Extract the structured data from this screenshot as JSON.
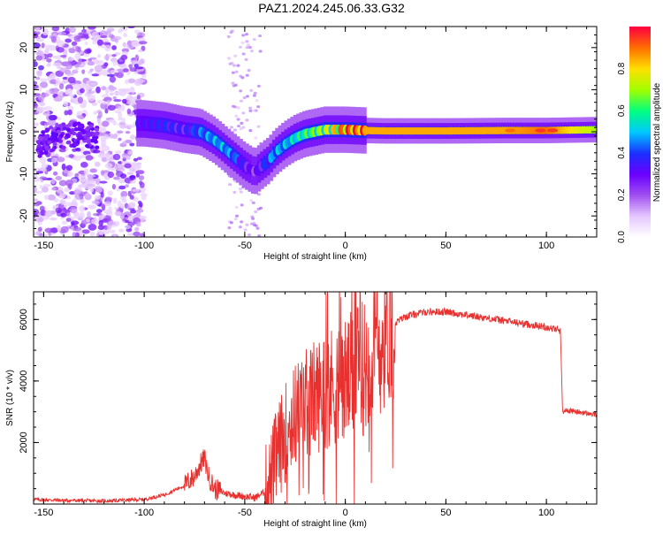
{
  "figure": {
    "title": "PAZ1.2024.245.06.33.G32"
  },
  "colors": {
    "snr_line": "#e8302e",
    "colormap": [
      "#ffffff",
      "#e6c8ff",
      "#a050f0",
      "#6a00ff",
      "#1a30ff",
      "#00c8ff",
      "#00ff80",
      "#a0ff00",
      "#ffe000",
      "#ff7000",
      "#ff0040"
    ]
  },
  "chart_data": [
    {
      "type": "heatmap",
      "title": "PAZ1.2024.245.06.33.G32",
      "xlabel": "Height of straight line (km)",
      "ylabel": "Frequency (Hz)",
      "xlim": [
        -155,
        125
      ],
      "ylim": [
        -25,
        25
      ],
      "xticks": [
        -150,
        -100,
        -50,
        0,
        50,
        100
      ],
      "yticks": [
        -20,
        -10,
        0,
        10,
        20
      ],
      "colorbar": {
        "label": "Normalized spectral amplitude",
        "range": [
          0,
          1
        ],
        "ticks": [
          "0.0",
          "0.2",
          "0.4",
          "0.6",
          "0.8"
        ],
        "tick_values": [
          0.0,
          0.2,
          0.4,
          0.6,
          0.8
        ]
      },
      "ridge": {
        "x": [
          -100,
          -90,
          -80,
          -72,
          -65,
          -60,
          -55,
          -50,
          -45,
          -40,
          -38,
          -35,
          -30,
          -25,
          -20,
          -15,
          -10,
          -5,
          0,
          10,
          20,
          30,
          50,
          80,
          100,
          125
        ],
        "frequency": [
          2,
          1.5,
          0.5,
          0,
          -2,
          -4,
          -6,
          -8,
          -9.5,
          -7.5,
          -6.8,
          -5,
          -3,
          -1.5,
          -0.5,
          0,
          0.5,
          0.5,
          0.5,
          0.3,
          0.2,
          0.2,
          0.2,
          0.3,
          0.3,
          0.5
        ],
        "amplitude": [
          0.3,
          0.35,
          0.3,
          0.4,
          0.45,
          0.45,
          0.4,
          0.3,
          0.25,
          0.35,
          0.4,
          0.45,
          0.45,
          0.5,
          0.55,
          0.6,
          0.65,
          0.75,
          0.85,
          0.85,
          0.85,
          0.85,
          0.85,
          0.85,
          0.9,
          0.7
        ]
      },
      "noise_region_x": [
        -155,
        -100
      ]
    },
    {
      "type": "line",
      "xlabel": "Height of straight line (km)",
      "ylabel": "SNR (10 * v/v)",
      "xlim": [
        -155,
        125
      ],
      "ylim": [
        0,
        6900
      ],
      "xticks": [
        -150,
        -100,
        -50,
        0,
        50,
        100
      ],
      "yticks": [
        2000,
        4000,
        6000
      ],
      "series": [
        {
          "x": [
            -155,
            -140,
            -120,
            -100,
            -90,
            -80,
            -75,
            -72,
            -70,
            -68,
            -65,
            -60,
            -55,
            -50,
            -45,
            -40,
            -37,
            -35,
            -30,
            -25,
            -20,
            -15,
            -10,
            -5,
            0,
            5,
            10,
            15,
            20,
            25,
            30,
            40,
            50,
            60,
            70,
            80,
            90,
            100,
            107,
            108,
            110,
            125
          ],
          "y": [
            150,
            120,
            100,
            150,
            300,
            600,
            900,
            1300,
            1500,
            900,
            500,
            350,
            300,
            250,
            200,
            400,
            800,
            1400,
            2300,
            2900,
            3300,
            3500,
            3700,
            3900,
            4000,
            4200,
            4500,
            4900,
            5500,
            5900,
            6100,
            6250,
            6250,
            6150,
            6050,
            5950,
            5850,
            5750,
            5650,
            3000,
            3050,
            2900
          ]
        }
      ]
    }
  ]
}
